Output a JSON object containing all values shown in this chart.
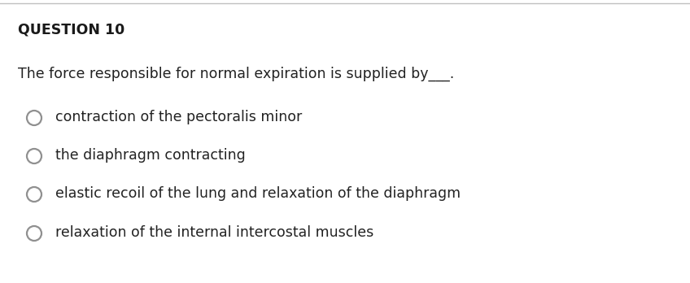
{
  "bg_color": "#ffffff",
  "top_line_color": "#c0c0c0",
  "question_label": "QUESTION 10",
  "question_text": "The force responsible for normal expiration is supplied by___.",
  "options": [
    "contraction of the pectoralis minor",
    "the diaphragm contracting",
    "elastic recoil of the lung and relaxation of the diaphragm",
    "relaxation of the internal intercostal muscles"
  ],
  "question_label_fontsize": 12.5,
  "question_text_fontsize": 12.5,
  "option_fontsize": 12.5,
  "circle_color": "#909090",
  "circle_linewidth": 1.6,
  "text_color": "#222222",
  "label_color": "#1a1a1a",
  "fig_width": 8.48,
  "fig_height": 3.48,
  "dpi": 100
}
